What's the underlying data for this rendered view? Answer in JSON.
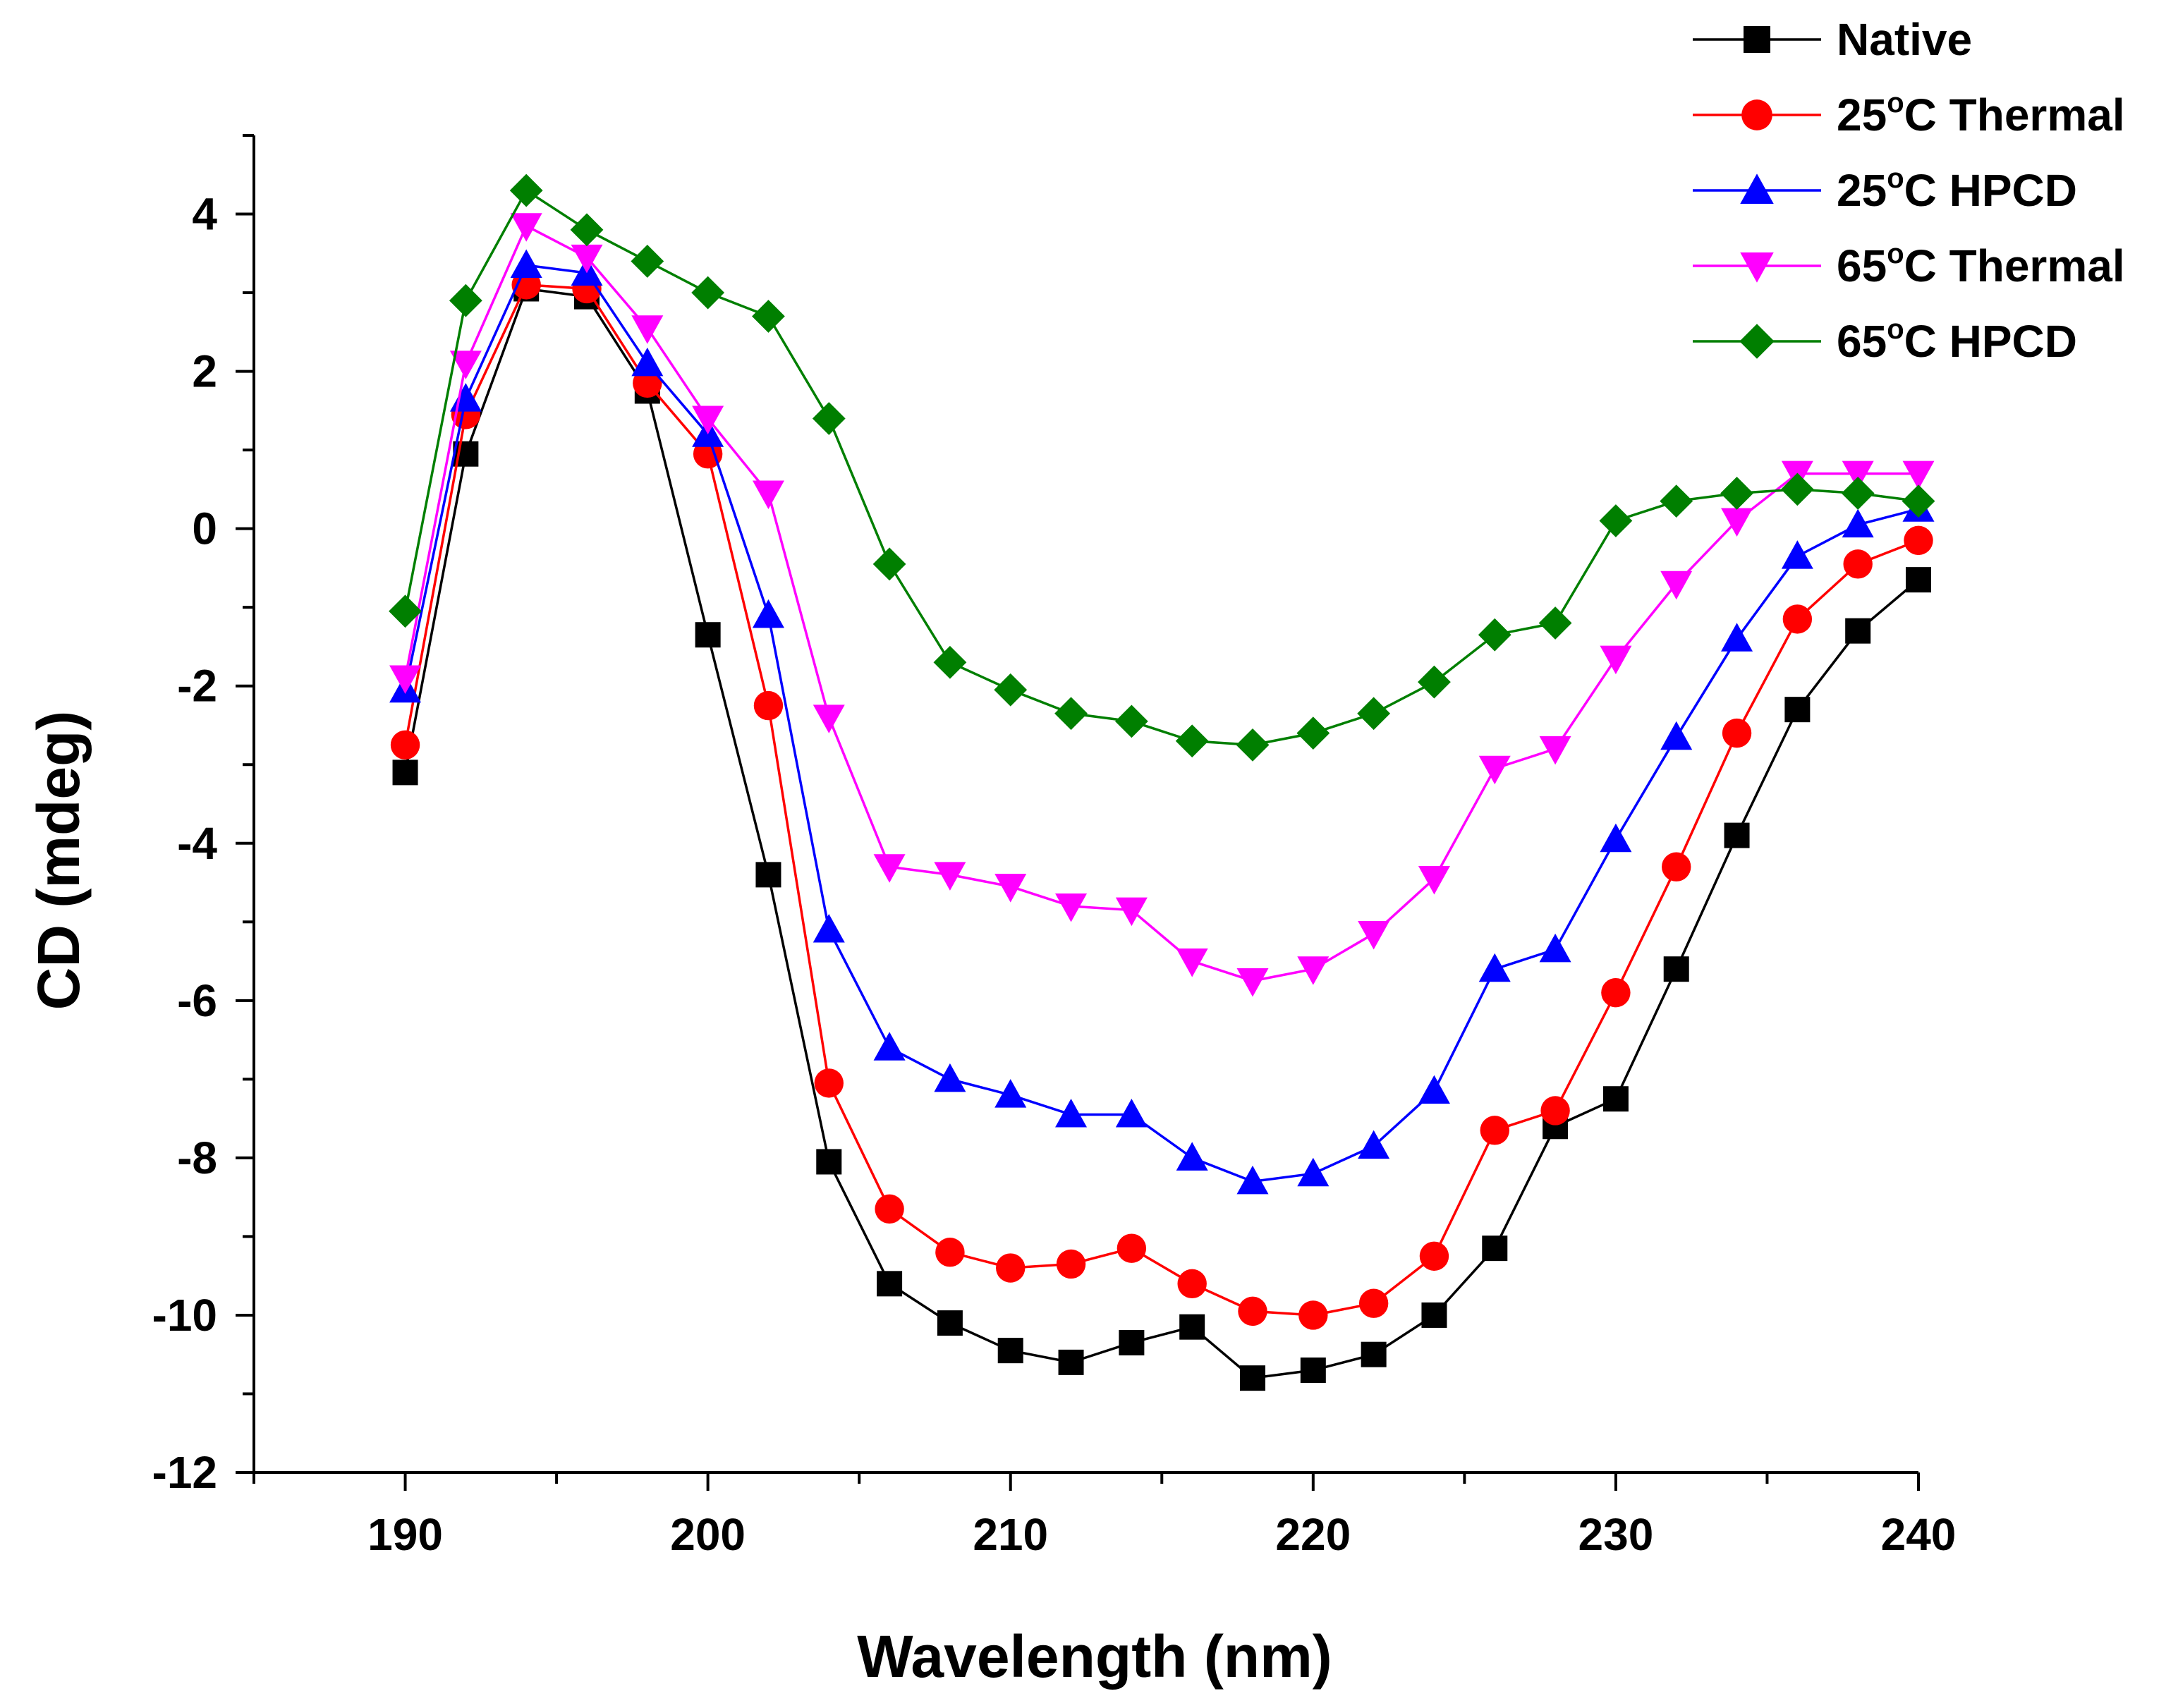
{
  "chart_data": {
    "type": "line",
    "xlabel": "Wavelength (nm)",
    "ylabel": "CD (mdeg)",
    "xlim": [
      185,
      240
    ],
    "ylim": [
      -12,
      5
    ],
    "xticks": [
      190,
      200,
      210,
      220,
      230,
      240
    ],
    "yticks": [
      -12,
      -10,
      -8,
      -6,
      -4,
      -2,
      0,
      2,
      4
    ],
    "grid": false,
    "legend_position": "top-right",
    "x": [
      190,
      192,
      194,
      196,
      198,
      200,
      202,
      204,
      206,
      208,
      210,
      212,
      214,
      216,
      218,
      220,
      222,
      224,
      226,
      228,
      230,
      232,
      234,
      236,
      238,
      240
    ],
    "series": [
      {
        "name": "Native",
        "superscript": "",
        "color": "#000000",
        "marker": "square",
        "values": [
          -3.1,
          0.95,
          3.05,
          2.95,
          1.75,
          -1.35,
          -4.4,
          -8.05,
          -9.6,
          -10.1,
          -10.45,
          -10.6,
          -10.35,
          -10.15,
          -10.8,
          -10.7,
          -10.5,
          -10.0,
          -9.15,
          -7.6,
          -7.25,
          -5.6,
          -3.9,
          -2.3,
          -1.3,
          -0.65
        ]
      },
      {
        "name": "25",
        "superscript": "o",
        "name_suffix": "C Thermal",
        "color": "#ff0000",
        "marker": "circle",
        "values": [
          -2.75,
          1.45,
          3.1,
          3.05,
          1.85,
          0.95,
          -2.25,
          -7.05,
          -8.65,
          -9.2,
          -9.4,
          -9.35,
          -9.15,
          -9.6,
          -9.95,
          -10.0,
          -9.85,
          -9.25,
          -7.65,
          -7.4,
          -5.9,
          -4.3,
          -2.6,
          -1.15,
          -0.45,
          -0.15
        ]
      },
      {
        "name": "25",
        "superscript": "o",
        "name_suffix": "C HPCD",
        "color": "#0000ff",
        "marker": "triangle-up",
        "values": [
          -2.05,
          1.65,
          3.35,
          3.25,
          2.1,
          1.2,
          -1.1,
          -5.1,
          -6.6,
          -7.0,
          -7.2,
          -7.45,
          -7.45,
          -8.0,
          -8.3,
          -8.2,
          -7.85,
          -7.15,
          -5.6,
          -5.35,
          -3.95,
          -2.65,
          -1.4,
          -0.35,
          0.05,
          0.25
        ]
      },
      {
        "name": "65",
        "superscript": "o",
        "name_suffix": "C Thermal",
        "color": "#ff00ff",
        "marker": "triangle-down",
        "values": [
          -1.9,
          2.1,
          3.85,
          3.45,
          2.55,
          1.4,
          0.45,
          -2.4,
          -4.3,
          -4.4,
          -4.55,
          -4.8,
          -4.85,
          -5.5,
          -5.75,
          -5.6,
          -5.15,
          -4.45,
          -3.05,
          -2.8,
          -1.65,
          -0.7,
          0.1,
          0.7,
          0.7,
          0.7
        ]
      },
      {
        "name": "65",
        "superscript": "o",
        "name_suffix": "C HPCD",
        "color": "#007f00",
        "marker": "diamond",
        "values": [
          -1.05,
          2.9,
          4.3,
          3.8,
          3.4,
          3.0,
          2.7,
          1.4,
          -0.45,
          -1.7,
          -2.05,
          -2.35,
          -2.45,
          -2.7,
          -2.75,
          -2.6,
          -2.35,
          -1.95,
          -1.35,
          -1.2,
          0.1,
          0.35,
          0.45,
          0.5,
          0.45,
          0.35
        ]
      }
    ]
  }
}
